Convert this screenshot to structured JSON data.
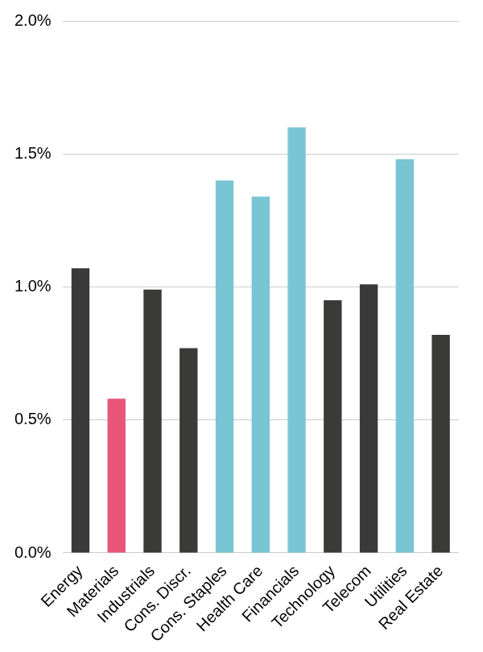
{
  "chart_data": {
    "type": "bar",
    "categories": [
      "Energy",
      "Materials",
      "Industrials",
      "Cons. Discr.",
      "Cons. Staples",
      "Health Care",
      "Financials",
      "Technology",
      "Telecom",
      "Utilities",
      "Real Estate"
    ],
    "values": [
      1.07,
      0.58,
      0.99,
      0.77,
      1.4,
      1.34,
      1.6,
      0.95,
      1.01,
      1.48,
      0.82
    ],
    "colors": [
      "#3a3a38",
      "#e8577a",
      "#3a3a38",
      "#3a3a38",
      "#7ac5d4",
      "#7ac5d4",
      "#7ac5d4",
      "#3a3a38",
      "#3a3a38",
      "#7ac5d4",
      "#3a3a38"
    ],
    "ylim": [
      0,
      2
    ],
    "yticks": [
      {
        "value": 0,
        "label": "0.0%"
      },
      {
        "value": 0.5,
        "label": "0.5%"
      },
      {
        "value": 1,
        "label": "1.0%"
      },
      {
        "value": 1.5,
        "label": "1.5%"
      },
      {
        "value": 2,
        "label": "2.0%"
      }
    ],
    "grid": true
  }
}
